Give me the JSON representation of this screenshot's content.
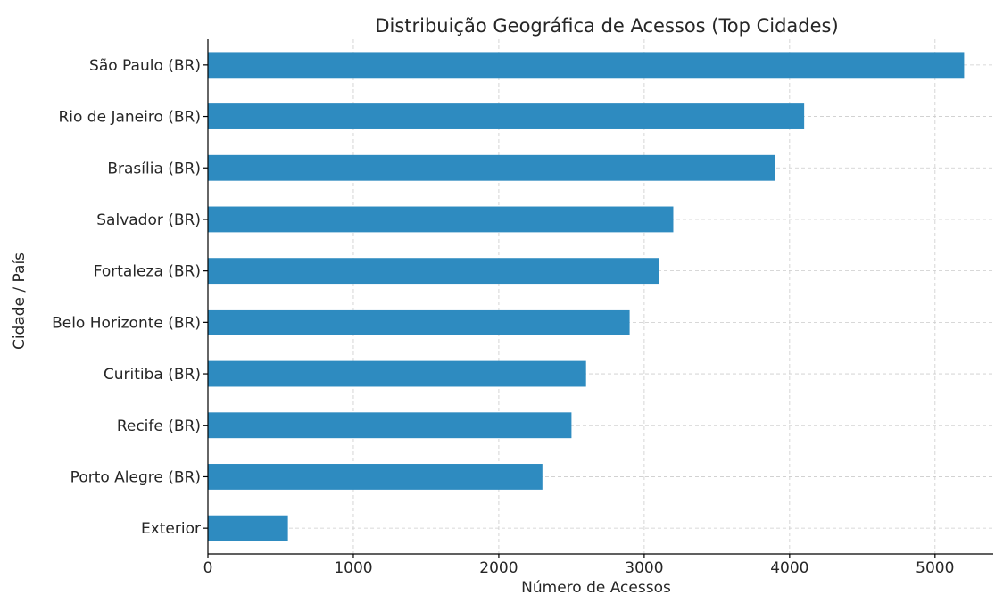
{
  "chart_data": {
    "type": "bar",
    "orientation": "horizontal",
    "title": "Distribuição Geográfica de Acessos (Top Cidades)",
    "xlabel": "Número de Acessos",
    "ylabel": "Cidade / País",
    "categories": [
      "São Paulo (BR)",
      "Rio de Janeiro (BR)",
      "Brasília (BR)",
      "Salvador (BR)",
      "Fortaleza (BR)",
      "Belo Horizonte (BR)",
      "Curitiba (BR)",
      "Recife (BR)",
      "Porto Alegre (BR)",
      "Exterior"
    ],
    "values": [
      5200,
      4100,
      3900,
      3200,
      3100,
      2900,
      2600,
      2500,
      2300,
      550
    ],
    "xlim": [
      0,
      5400
    ],
    "xticks": [
      0,
      1000,
      2000,
      3000,
      4000,
      5000
    ],
    "xtick_labels": [
      "0",
      "1000",
      "2000",
      "3000",
      "4000",
      "5000"
    ],
    "grid": true,
    "bar_color": "#2e8bc0"
  }
}
